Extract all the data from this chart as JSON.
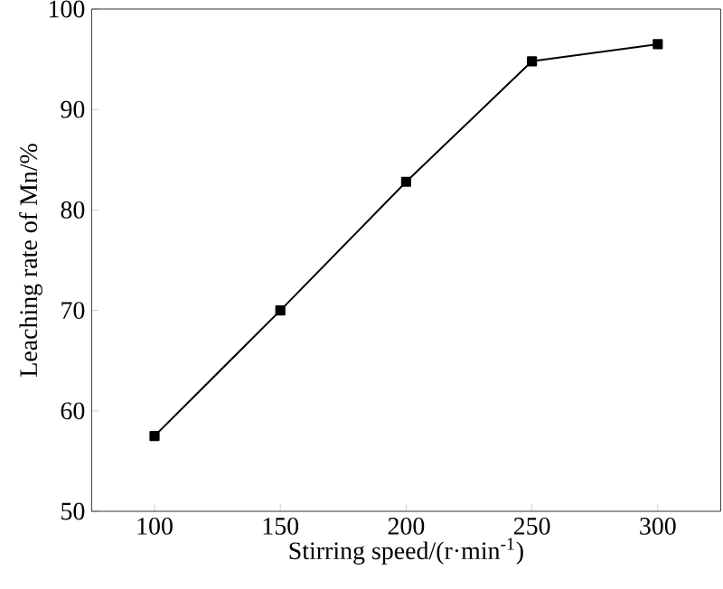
{
  "chart_data": {
    "type": "line",
    "xlabel": "Stirring speed/(r·min$^{-1}$)",
    "ylabel": "Leaching rate of Mn/%",
    "x": [
      100,
      150,
      200,
      250,
      300
    ],
    "series": [
      {
        "color": "#000000",
        "values": [
          57.5,
          70,
          82.8,
          94.8,
          96.5
        ]
      }
    ],
    "xlim": [
      75,
      325
    ],
    "ylim": [
      50,
      100
    ],
    "xticks": [
      100,
      150,
      200,
      250,
      300
    ],
    "yticks": [
      50,
      60,
      70,
      80,
      90,
      100
    ],
    "grid": false,
    "marker": "square",
    "line_style": "solid"
  }
}
